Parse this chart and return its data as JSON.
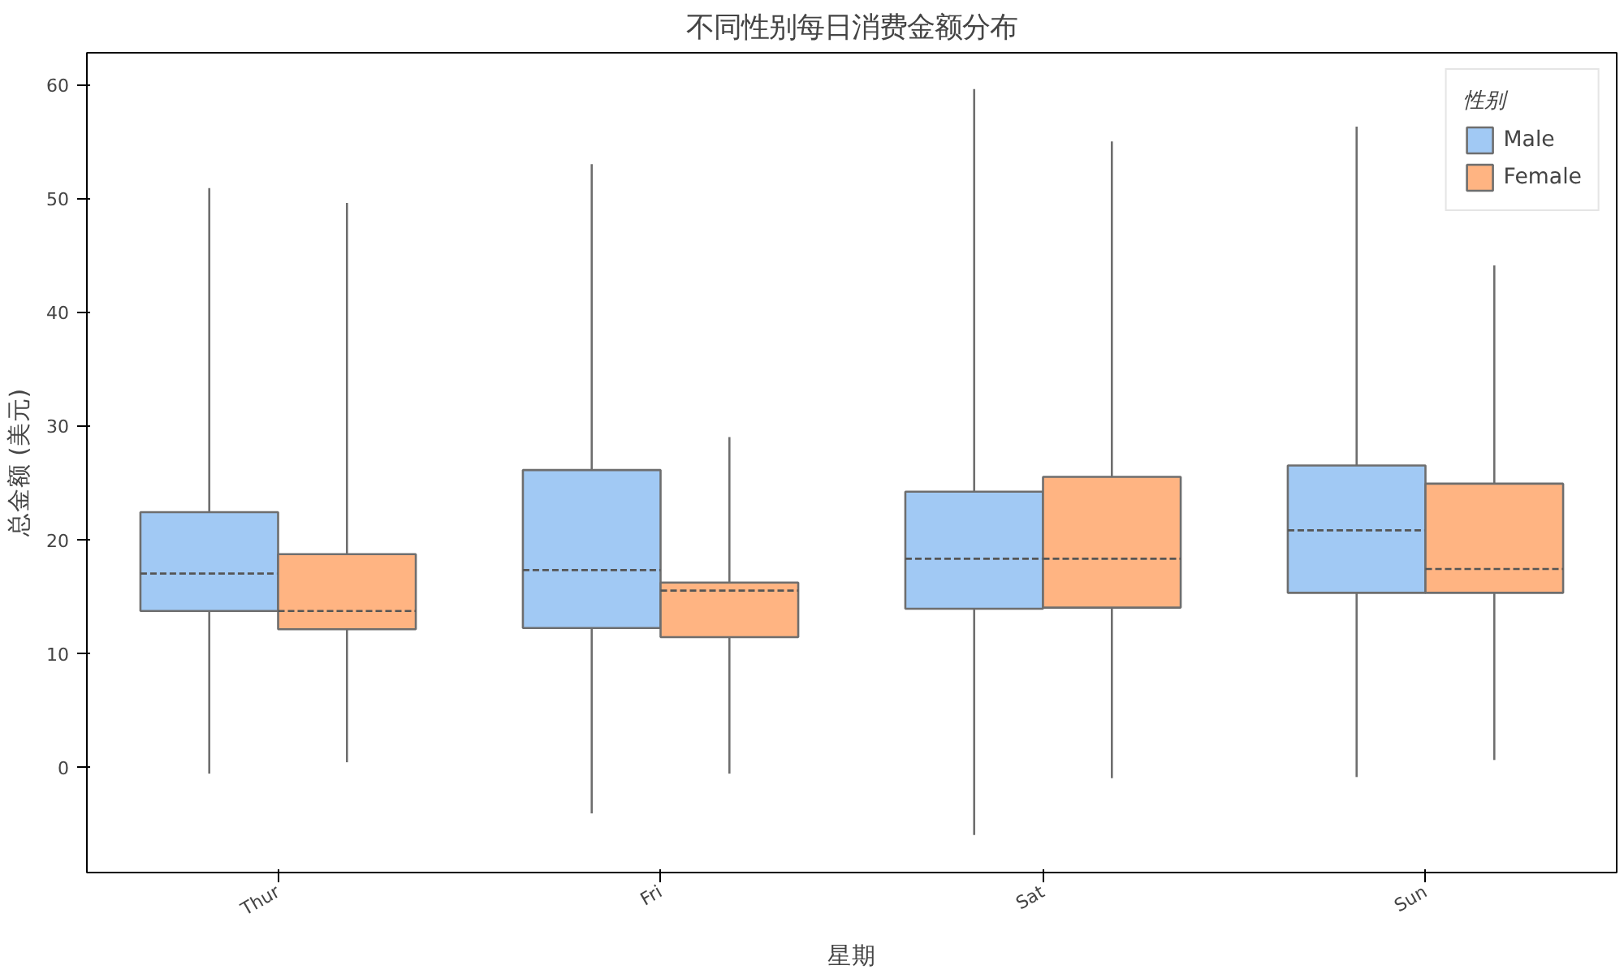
{
  "chart_data": {
    "type": "box",
    "title": "不同性别每日消费金额分布",
    "xlabel": "星期",
    "ylabel": "总金额 (美元)",
    "legend_title": "性别",
    "categories": [
      "Thur",
      "Fri",
      "Sat",
      "Sun"
    ],
    "series": [
      {
        "name": "Male",
        "color": "#a1c9f4",
        "boxes": [
          {
            "low": -0.6,
            "q1": 13.7,
            "median": 17.0,
            "q3": 22.4,
            "high": 50.9
          },
          {
            "low": -4.1,
            "q1": 12.2,
            "median": 17.3,
            "q3": 26.1,
            "high": 53.0
          },
          {
            "low": -6.0,
            "q1": 13.9,
            "median": 18.3,
            "q3": 24.2,
            "high": 59.6
          },
          {
            "low": -0.9,
            "q1": 15.3,
            "median": 20.8,
            "q3": 26.5,
            "high": 56.3
          }
        ]
      },
      {
        "name": "Female",
        "color": "#ffb482",
        "boxes": [
          {
            "low": 0.4,
            "q1": 12.1,
            "median": 13.7,
            "q3": 18.7,
            "high": 49.6
          },
          {
            "low": -0.6,
            "q1": 11.4,
            "median": 15.5,
            "q3": 16.2,
            "high": 29.0
          },
          {
            "low": -1.0,
            "q1": 14.0,
            "median": 18.3,
            "q3": 25.5,
            "high": 55.0
          },
          {
            "low": 0.6,
            "q1": 15.3,
            "median": 17.4,
            "q3": 24.9,
            "high": 44.1
          }
        ]
      }
    ],
    "ylim": [
      -9.3,
      62.8
    ],
    "yticks": [
      0,
      10,
      20,
      30,
      40,
      50,
      60
    ],
    "grid": false,
    "legend": "top right"
  }
}
